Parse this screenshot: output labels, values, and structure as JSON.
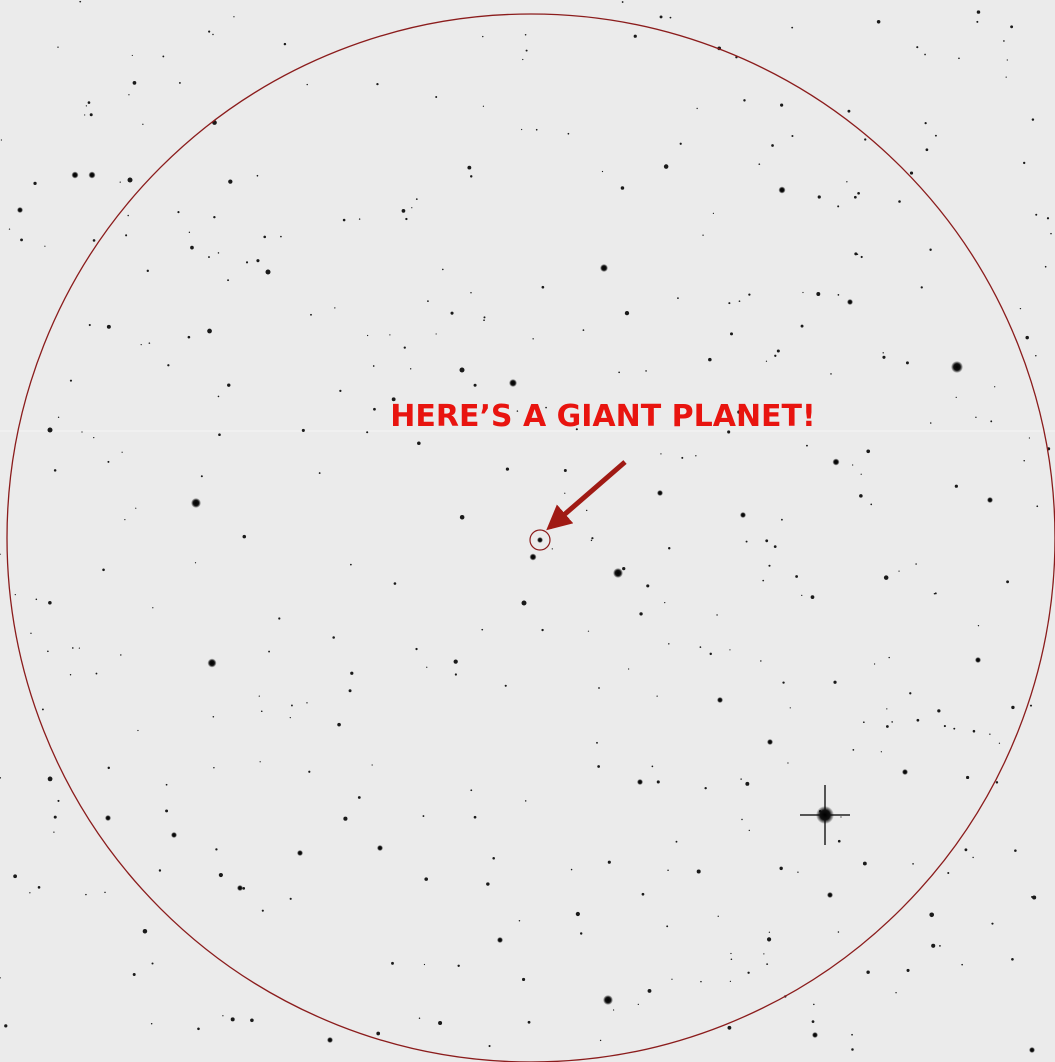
{
  "annotation": {
    "text": "HERE’S A GIANT PLANET!"
  }
}
